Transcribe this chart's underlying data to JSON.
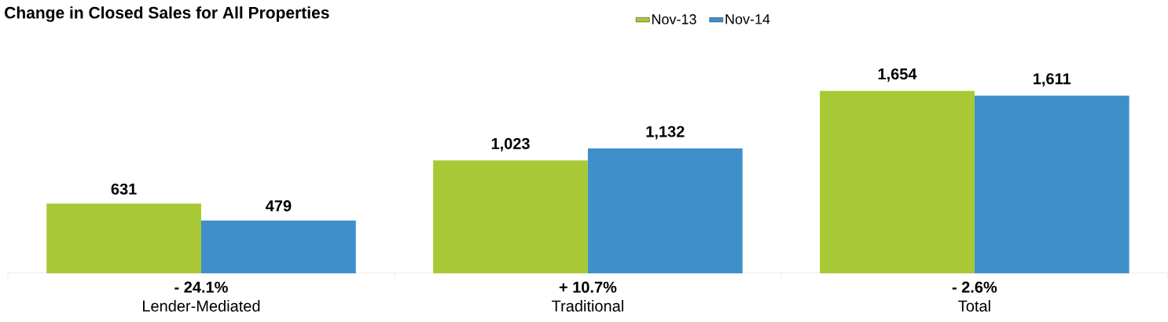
{
  "chart_data": {
    "type": "bar",
    "title": "Change in Closed Sales for All Properties",
    "categories": [
      "Lender-Mediated",
      "Traditional",
      "Total"
    ],
    "series": [
      {
        "name": "Nov-13",
        "color": "#a8c935",
        "values": [
          631,
          1023,
          1654
        ],
        "value_labels": [
          "631",
          "1,023",
          "1,654"
        ]
      },
      {
        "name": "Nov-14",
        "color": "#3f8fcb",
        "values": [
          479,
          1132,
          1611
        ],
        "value_labels": [
          "479",
          "1,132",
          "1,611"
        ]
      }
    ],
    "annotations": [
      "- 24.1%",
      "+ 10.7%",
      "- 2.6%"
    ],
    "legend": "top"
  }
}
